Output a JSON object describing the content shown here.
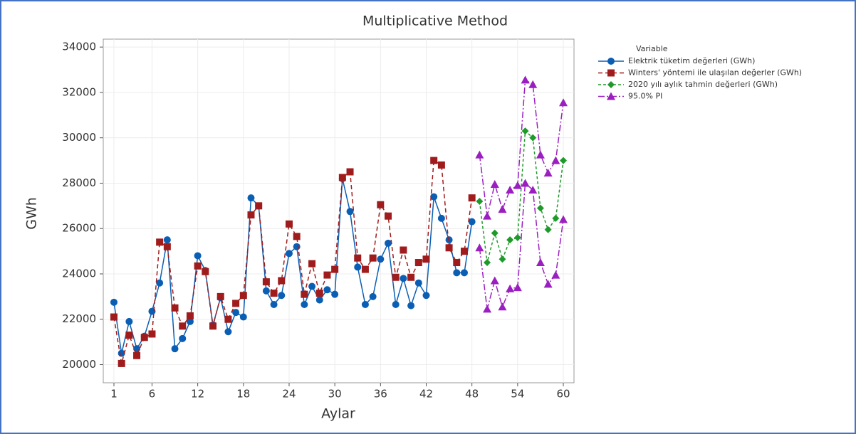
{
  "chart_data": {
    "type": "line",
    "title": "Multiplicative Method",
    "x_label": "Aylar",
    "y_label": "GWh",
    "xlim": [
      -0.4,
      61.4
    ],
    "xticks": [
      1,
      6,
      12,
      18,
      24,
      30,
      36,
      42,
      48,
      54,
      60
    ],
    "ylim": [
      19200,
      34350
    ],
    "yticks": [
      {
        "value": 20000,
        "label": "20000"
      },
      {
        "value": 22000,
        "label": "22000"
      },
      {
        "value": 24000,
        "label": "24000"
      },
      {
        "value": 26000,
        "label": "26000"
      },
      {
        "value": 28000,
        "label": "28000"
      },
      {
        "value": 30000,
        "label": "30000"
      },
      {
        "value": 32000,
        "label": "32000"
      },
      {
        "value": 34000,
        "label": "34000"
      }
    ],
    "grid": true,
    "legend_title": "Variable",
    "legend_position": "right",
    "series": [
      {
        "name": "Elektrik tüketim değerleri (GWh)",
        "color": "#0a5fb4",
        "marker": "circle",
        "dash": "",
        "x": [
          1,
          2,
          3,
          4,
          5,
          6,
          7,
          8,
          9,
          10,
          11,
          12,
          13,
          14,
          15,
          16,
          17,
          18,
          19,
          20,
          21,
          22,
          23,
          24,
          25,
          26,
          27,
          28,
          29,
          30,
          31,
          32,
          33,
          34,
          35,
          36,
          37,
          38,
          39,
          40,
          41,
          42,
          43,
          44,
          45,
          46,
          47,
          48
        ],
        "values": [
          22750,
          20500,
          21900,
          20700,
          21250,
          22350,
          23600,
          25500,
          20700,
          21150,
          21900,
          24800,
          24150,
          21750,
          22950,
          21450,
          22300,
          22100,
          27350,
          27000,
          23250,
          22650,
          23050,
          24900,
          25200,
          22650,
          23450,
          22850,
          23300,
          23100,
          28200,
          26750,
          24300,
          22650,
          23000,
          24650,
          25350,
          22650,
          23800,
          22600,
          23600,
          23050,
          27400,
          26450,
          25500,
          24050,
          24050,
          26300
        ]
      },
      {
        "name": "Winters' yöntemi ile ulaşılan değerler (GWh)",
        "color": "#a01c1c",
        "marker": "square",
        "dash": "6 4",
        "x": [
          1,
          2,
          3,
          4,
          5,
          6,
          7,
          8,
          9,
          10,
          11,
          12,
          13,
          14,
          15,
          16,
          17,
          18,
          19,
          20,
          21,
          22,
          23,
          24,
          25,
          26,
          27,
          28,
          29,
          30,
          31,
          32,
          33,
          34,
          35,
          36,
          37,
          38,
          39,
          40,
          41,
          42,
          43,
          44,
          45,
          46,
          47,
          48
        ],
        "values": [
          22100,
          20050,
          21300,
          20400,
          21200,
          21350,
          25400,
          25200,
          22500,
          21700,
          22150,
          24350,
          24100,
          21700,
          23000,
          22000,
          22700,
          23050,
          26600,
          27000,
          23650,
          23150,
          23700,
          26200,
          25650,
          23100,
          24450,
          23150,
          23950,
          24200,
          28250,
          28500,
          24700,
          24200,
          24700,
          27050,
          26550,
          23850,
          25050,
          23850,
          24500,
          24650,
          29000,
          28800,
          25150,
          24500,
          25000,
          27350
        ]
      },
      {
        "name": "2020 yılı aylık tahmin değerleri (GWh)",
        "color": "#1e9a2a",
        "marker": "diamond",
        "dash": "4 3",
        "x": [
          49,
          50,
          51,
          52,
          53,
          54,
          55,
          56,
          57,
          58,
          59,
          60
        ],
        "values": [
          27200,
          24500,
          25800,
          24650,
          25500,
          25600,
          30300,
          30000,
          26900,
          25950,
          26450,
          29000
        ]
      },
      {
        "name": "95.0% PI",
        "color": "#9b1fc0",
        "marker": "triangle",
        "dash": "9 3 2 3",
        "x": [
          49,
          50,
          51,
          52,
          53,
          54,
          55,
          56,
          57,
          58,
          59,
          60
        ],
        "upper": [
          29250,
          26550,
          27950,
          26850,
          27700,
          27900,
          32550,
          32350,
          29250,
          28450,
          29000,
          31550
        ],
        "lower": [
          25150,
          22450,
          23700,
          22550,
          23350,
          23400,
          28000,
          27700,
          24500,
          23550,
          23950,
          26400
        ]
      }
    ]
  }
}
